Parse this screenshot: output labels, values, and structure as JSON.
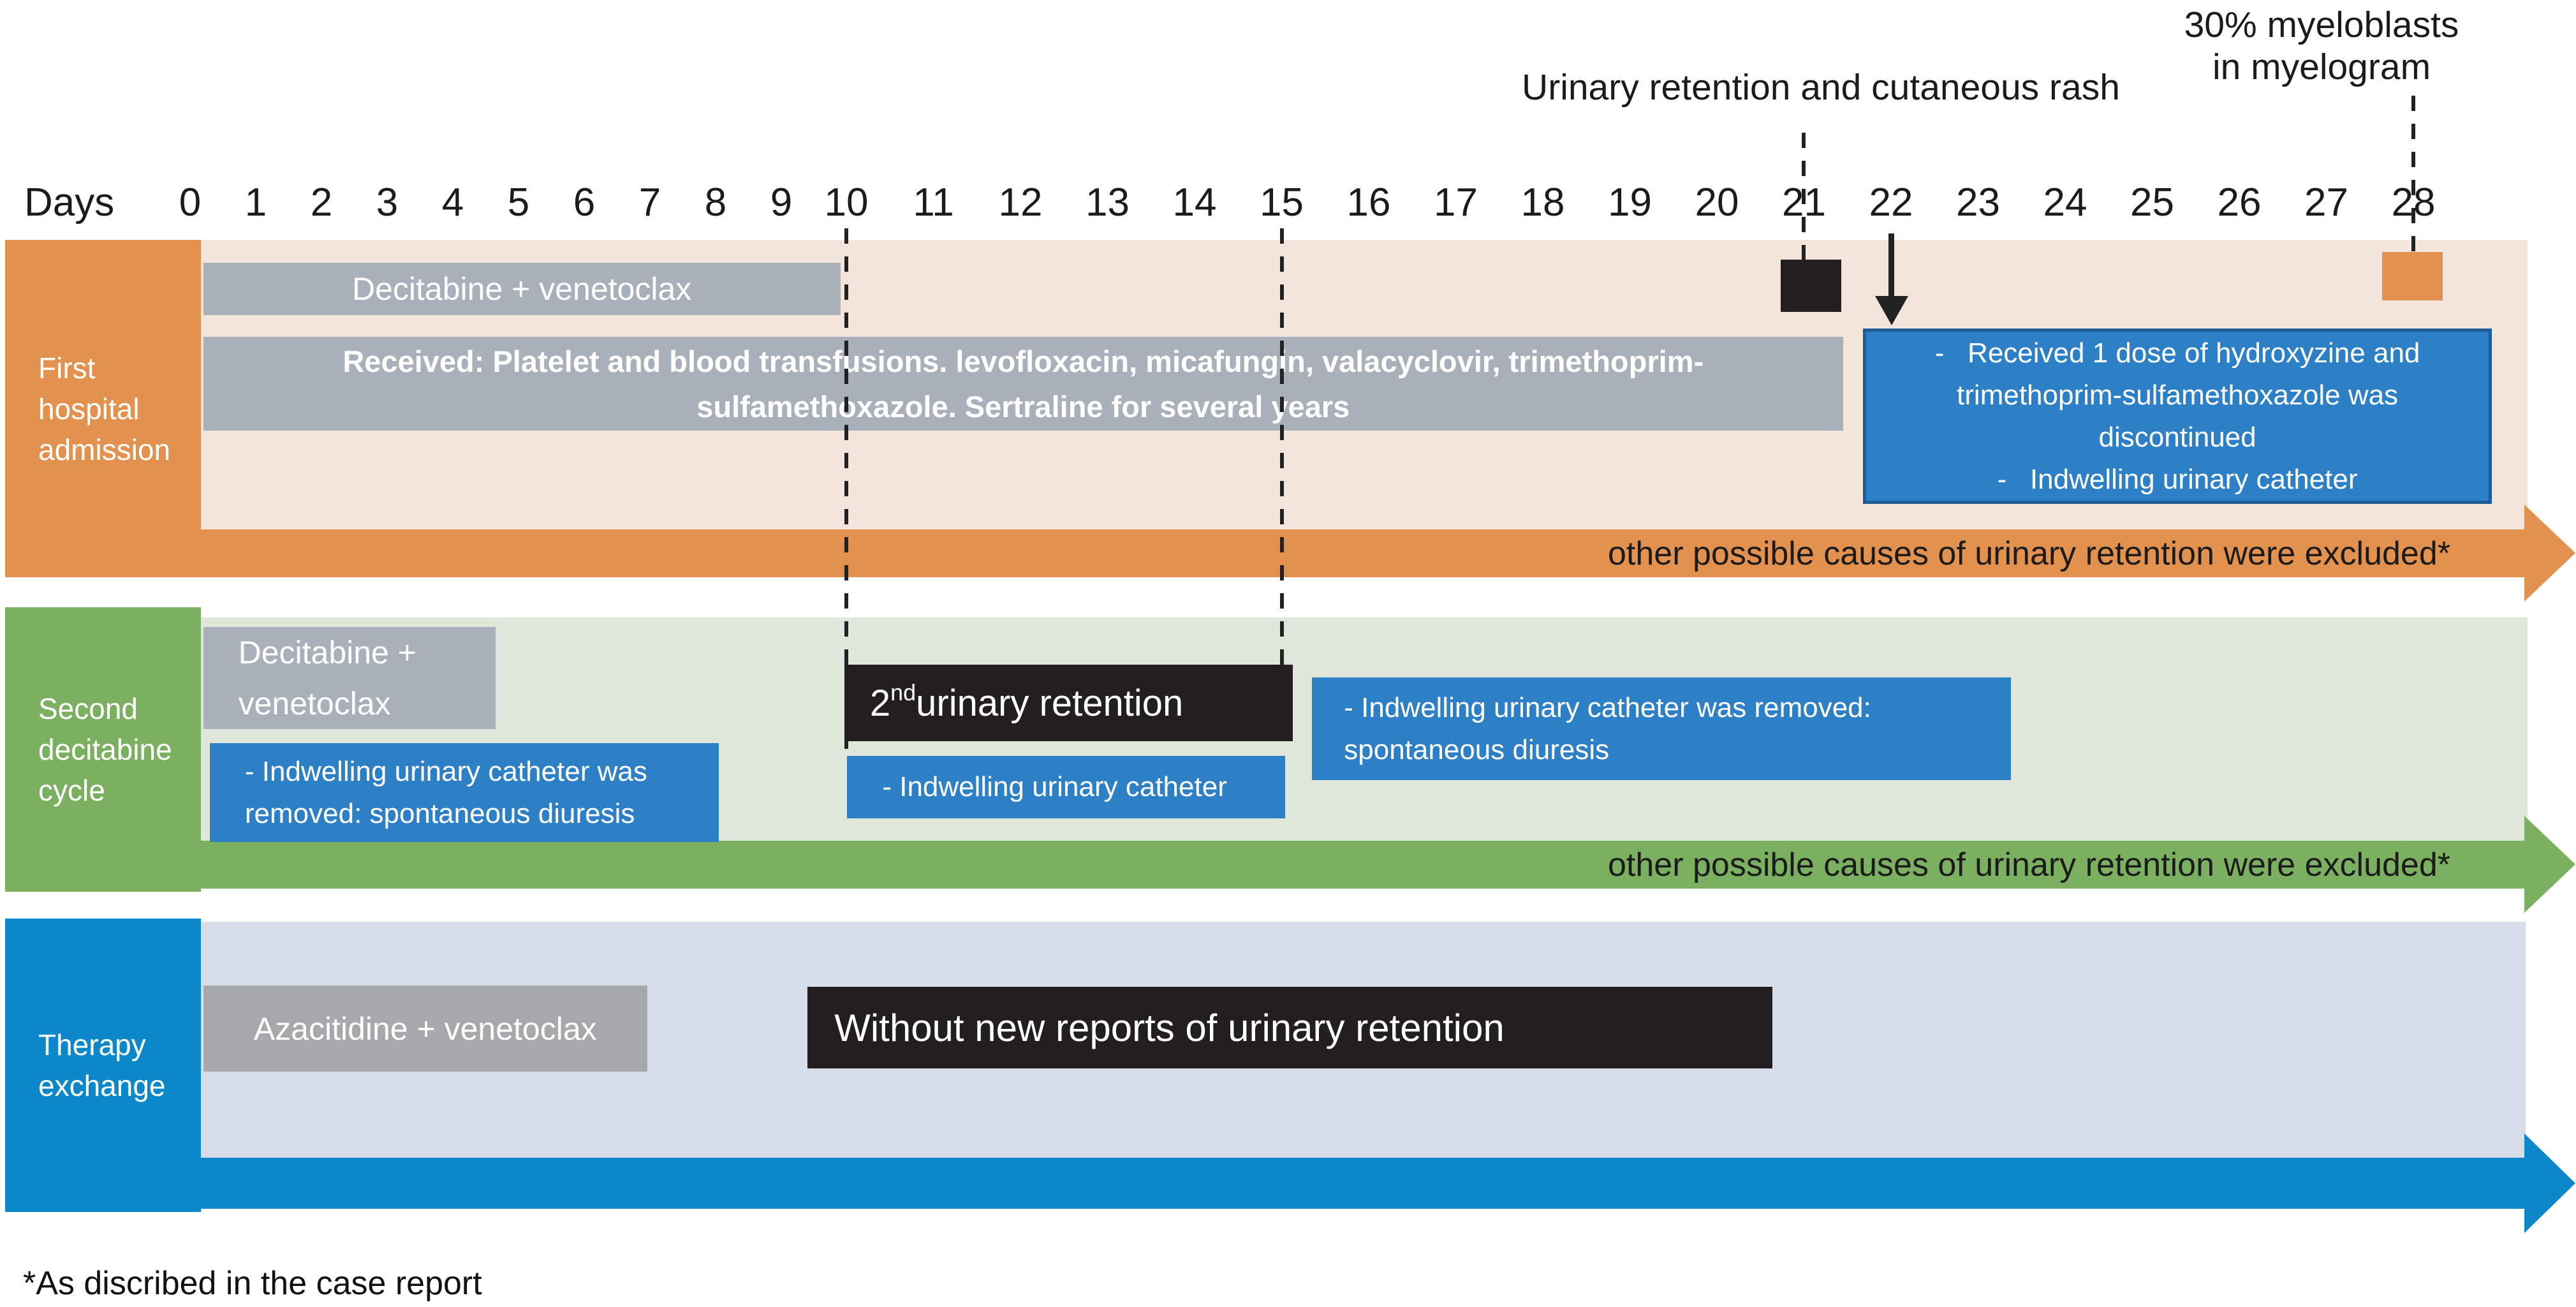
{
  "annotations": {
    "myeloblasts": "30% myeloblasts\nin myelogram",
    "urinary_rash": "Urinary retention and cutaneous rash"
  },
  "axis": {
    "label": "Days",
    "days": [
      "0",
      "1",
      "2",
      "3",
      "4",
      "5",
      "6",
      "7",
      "8",
      "9",
      "10",
      "11",
      "12",
      "13",
      "14",
      "15",
      "16",
      "17",
      "18",
      "19",
      "20",
      "21",
      "22",
      "23",
      "24",
      "25",
      "26",
      "27",
      "28"
    ]
  },
  "row1": {
    "label": "First\nhospital\nadmission",
    "bar_decitabine": "Decitabine + venetoclax",
    "bar_received": "Received: Platelet and blood transfusions. levofloxacin, micafungin, valacyclovir, trimethoprim-\nsulfamethoxazole. Sertraline for several years",
    "note_box": "-   Received 1 dose of hydroxyzine and\ntrimethoprim-sulfamethoxazole was\ndiscontinued\n-   Indwelling urinary catheter",
    "arrow_text": "other possible causes of urinary retention were excluded*"
  },
  "row2": {
    "label": "Second\ndecitabine\ncycle",
    "bar_decitabine": "Decitabine +\nvenetoclax",
    "event_retention": {
      "num": "2",
      "sup": "nd",
      "rest": " urinary retention"
    },
    "note_catheter_removed_1": "- Indwelling urinary catheter was\nremoved: spontaneous diuresis",
    "note_catheter": "- Indwelling urinary catheter",
    "note_catheter_removed_2": "- Indwelling urinary catheter was removed:\nspontaneous diuresis",
    "arrow_text": "other possible causes of urinary retention were excluded*"
  },
  "row3": {
    "label": "Therapy\nexchange",
    "bar_azacitidine": "Azacitidine + venetoclax",
    "event_no_retention": "Without new reports of urinary retention"
  },
  "footnote": "*As discribed in the case report",
  "timeline": {
    "row1_decitabine": [
      0.2,
      9.9
    ],
    "row1_received": [
      0.2,
      21.45
    ],
    "row1_event_day21": [
      20.73,
      21.43
    ],
    "row1_note": [
      21.68,
      28.9
    ],
    "row1_event_day28": [
      27.64,
      28.34
    ],
    "row2_decitabine": [
      0.2,
      4.65
    ],
    "row2_catheter_removed_1": [
      0.3,
      8.05
    ],
    "row2_retention": [
      9.96,
      15.13
    ],
    "row2_catheter": [
      10.01,
      15.04
    ],
    "row2_catheter_removed_2": [
      15.35,
      23.38
    ],
    "row3_azacitidine": [
      0.2,
      6.96
    ],
    "row3_no_retention": [
      9.4,
      20.64
    ]
  },
  "colors": {
    "orange": "#E2914E",
    "cream": "#F4E5DC",
    "gray": "#A9B0BA",
    "gray3": "#A6A8AB",
    "blue": "#2E80C6",
    "black": "#231F20",
    "green": "#7CB061",
    "lightgreen": "#DFE7DB",
    "blue3": "#0C87C9",
    "lightblue": "#D8DEE9"
  }
}
